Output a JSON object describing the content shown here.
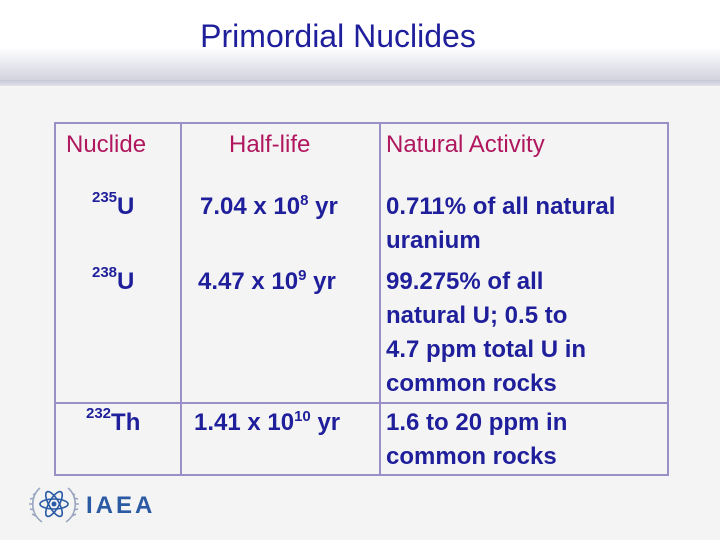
{
  "title": "Primordial Nuclides",
  "headers": {
    "nuclide": "Nuclide",
    "half_life": "Half-life",
    "activity": "Natural Activity"
  },
  "rows": [
    {
      "mass": "235",
      "element": "U",
      "half_life_mantissa": "7.04 x 10",
      "half_life_exp": "8",
      "half_life_unit": " yr",
      "activity_lines": [
        "0.711% of all natural",
        "uranium"
      ]
    },
    {
      "mass": "238",
      "element": "U",
      "half_life_mantissa": "4.47 x 10",
      "half_life_exp": "9",
      "half_life_unit": " yr",
      "activity_lines": [
        "99.275% of all",
        "natural U; 0.5 to",
        "4.7 ppm total U in",
        "common rocks"
      ]
    },
    {
      "mass": "232",
      "element": "Th",
      "half_life_mantissa": "1.41 x 10",
      "half_life_exp": "10",
      "half_life_unit": " yr",
      "activity_lines": [
        "1.6 to 20 ppm in",
        "common rocks"
      ]
    }
  ],
  "logo": {
    "icon": "iaea-emblem-icon",
    "text": "IAEA",
    "color": "#2b5aa5"
  }
}
